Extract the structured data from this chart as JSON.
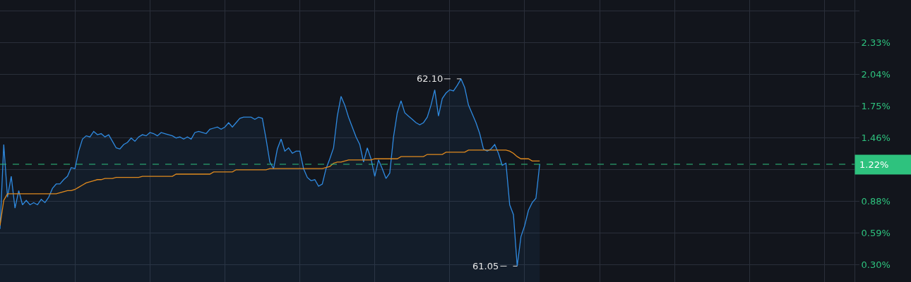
{
  "chart_data": {
    "type": "line",
    "categories": [
      null,
      null,
      null,
      null,
      null,
      null,
      null,
      null,
      null,
      null,
      null,
      null,
      null,
      null,
      null,
      null,
      null,
      null,
      null,
      null,
      null,
      null,
      null,
      null,
      null,
      null,
      null,
      null,
      null,
      null,
      null,
      null,
      null,
      null,
      null,
      null,
      null,
      null,
      null,
      null,
      null,
      null,
      null,
      null,
      null,
      null,
      null,
      null,
      null,
      null,
      null,
      null,
      null,
      null,
      null,
      null,
      null,
      null,
      null,
      null,
      null,
      null,
      null,
      null,
      null,
      null,
      null,
      null,
      null,
      null,
      null,
      null,
      null,
      null,
      null,
      null,
      null,
      null,
      null,
      null,
      null,
      null,
      null,
      null,
      null,
      null,
      null,
      null,
      null,
      null,
      null,
      null,
      null,
      null,
      null,
      null,
      null,
      null,
      null,
      null,
      null,
      null,
      null,
      null,
      null,
      null,
      null,
      null,
      null,
      null,
      null,
      null,
      null,
      null,
      null,
      null,
      null,
      null,
      null,
      null,
      null,
      null,
      null,
      null,
      null,
      null,
      null,
      null,
      null,
      null,
      null,
      null,
      null,
      null,
      null,
      null,
      null,
      null,
      null,
      null,
      null,
      null,
      null,
      null,
      null,
      null,
      null,
      null,
      null,
      null,
      null,
      null,
      null,
      null,
      null,
      null,
      null,
      null,
      null,
      null,
      null,
      null,
      null,
      null,
      null,
      null,
      null,
      null,
      null,
      null,
      null,
      null,
      null,
      null,
      null,
      null,
      null,
      null,
      null,
      null,
      null,
      null,
      null,
      null,
      null,
      null,
      null,
      null,
      null,
      null,
      null,
      null,
      null,
      null,
      null,
      null,
      null,
      null,
      null,
      null,
      null,
      null,
      null,
      null,
      null,
      null,
      null,
      null,
      null,
      null,
      null,
      null,
      null,
      null,
      null,
      null,
      null,
      null,
      null,
      null,
      null,
      null,
      null,
      null,
      null,
      null,
      null,
      null
    ],
    "series": [
      {
        "type": "area",
        "color": "#2f8ae0",
        "values": [
          0.63,
          1.4,
          0.92,
          1.11,
          0.82,
          0.98,
          0.85,
          0.89,
          0.85,
          0.87,
          0.85,
          0.9,
          0.87,
          0.92,
          1.0,
          1.04,
          1.04,
          1.08,
          1.11,
          1.19,
          1.18,
          1.34,
          1.45,
          1.48,
          1.47,
          1.52,
          1.49,
          1.5,
          1.47,
          1.49,
          1.43,
          1.37,
          1.36,
          1.4,
          1.42,
          1.46,
          1.43,
          1.47,
          1.49,
          1.48,
          1.51,
          1.5,
          1.48,
          1.51,
          1.5,
          1.49,
          1.48,
          1.46,
          1.47,
          1.45,
          1.47,
          1.45,
          1.51,
          1.52,
          1.51,
          1.5,
          1.54,
          1.55,
          1.56,
          1.54,
          1.56,
          1.6,
          1.56,
          1.6,
          1.64,
          1.65,
          1.65,
          1.65,
          1.63,
          1.65,
          1.64,
          1.45,
          1.24,
          1.18,
          1.36,
          1.45,
          1.34,
          1.37,
          1.32,
          1.34,
          1.34,
          1.18,
          1.1,
          1.07,
          1.08,
          1.02,
          1.04,
          1.18,
          1.27,
          1.37,
          1.66,
          1.84,
          1.76,
          1.65,
          1.56,
          1.47,
          1.4,
          1.24,
          1.37,
          1.27,
          1.11,
          1.26,
          1.18,
          1.09,
          1.14,
          1.47,
          1.69,
          1.8,
          1.69,
          1.66,
          1.63,
          1.6,
          1.58,
          1.6,
          1.65,
          1.76,
          1.9,
          1.66,
          1.82,
          1.87,
          1.9,
          1.89,
          1.94,
          2.0,
          1.92,
          1.76,
          1.68,
          1.6,
          1.5,
          1.36,
          1.34,
          1.36,
          1.4,
          1.32,
          1.21,
          1.23,
          0.85,
          0.76,
          0.29,
          0.56,
          0.66,
          0.8,
          0.87,
          0.91,
          1.22,
          null,
          null,
          null,
          null,
          null,
          null,
          null,
          null,
          null,
          null,
          null,
          null,
          null,
          null,
          null,
          null,
          null,
          null,
          null,
          null,
          null,
          null,
          null,
          null,
          null,
          null,
          null,
          null,
          null,
          null,
          null,
          null,
          null,
          null,
          null,
          null,
          null,
          null,
          null,
          null,
          null,
          null,
          null,
          null,
          null,
          null,
          null,
          null,
          null,
          null,
          null,
          null,
          null,
          null,
          null,
          null,
          null,
          null,
          null,
          null,
          null,
          null,
          null,
          null,
          null,
          null,
          null,
          null,
          null,
          null,
          null,
          null,
          null,
          null,
          null,
          null,
          null,
          null,
          null,
          null,
          null,
          null,
          null
        ]
      },
      {
        "color": "#e08a1e",
        "values": [
          0.66,
          0.89,
          0.95,
          0.95,
          0.95,
          0.95,
          0.95,
          0.95,
          0.95,
          0.95,
          0.95,
          0.95,
          0.95,
          0.95,
          0.95,
          0.95,
          0.96,
          0.97,
          0.98,
          0.98,
          0.99,
          1.01,
          1.03,
          1.05,
          1.06,
          1.07,
          1.08,
          1.08,
          1.09,
          1.09,
          1.09,
          1.1,
          1.1,
          1.1,
          1.1,
          1.1,
          1.1,
          1.1,
          1.11,
          1.11,
          1.11,
          1.11,
          1.11,
          1.11,
          1.11,
          1.11,
          1.11,
          1.13,
          1.13,
          1.13,
          1.13,
          1.13,
          1.13,
          1.13,
          1.13,
          1.13,
          1.13,
          1.15,
          1.15,
          1.15,
          1.15,
          1.15,
          1.15,
          1.17,
          1.17,
          1.17,
          1.17,
          1.17,
          1.17,
          1.17,
          1.17,
          1.17,
          1.18,
          1.18,
          1.18,
          1.18,
          1.18,
          1.18,
          1.18,
          1.18,
          1.18,
          1.18,
          1.18,
          1.18,
          1.18,
          1.18,
          1.18,
          1.19,
          1.2,
          1.23,
          1.24,
          1.24,
          1.25,
          1.26,
          1.26,
          1.26,
          1.26,
          1.26,
          1.26,
          1.26,
          1.27,
          1.27,
          1.27,
          1.27,
          1.27,
          1.27,
          1.27,
          1.29,
          1.29,
          1.29,
          1.29,
          1.29,
          1.29,
          1.29,
          1.31,
          1.31,
          1.31,
          1.31,
          1.31,
          1.33,
          1.33,
          1.33,
          1.33,
          1.33,
          1.33,
          1.35,
          1.35,
          1.35,
          1.35,
          1.35,
          1.35,
          1.35,
          1.35,
          1.35,
          1.35,
          1.35,
          1.34,
          1.32,
          1.29,
          1.27,
          1.27,
          1.27,
          1.25,
          1.25,
          1.25,
          null,
          null,
          null,
          null,
          null,
          null,
          null,
          null,
          null,
          null,
          null,
          null,
          null,
          null,
          null,
          null,
          null,
          null,
          null,
          null,
          null,
          null,
          null,
          null,
          null,
          null,
          null,
          null,
          null,
          null,
          null,
          null,
          null,
          null,
          null,
          null,
          null,
          null,
          null,
          null,
          null,
          null,
          null,
          null,
          null,
          null,
          null,
          null,
          null,
          null,
          null,
          null,
          null,
          null,
          null,
          null,
          null,
          null,
          null,
          null,
          null,
          null,
          null,
          null,
          null,
          null,
          null,
          null,
          null,
          null,
          null,
          null,
          null,
          null,
          null,
          null,
          null,
          null,
          null,
          null,
          null,
          null,
          null
        ]
      }
    ],
    "ylim": [
      0.145,
      2.72
    ],
    "yticks": [
      {
        "value": 0.3,
        "label": "0.30%"
      },
      {
        "value": 0.59,
        "label": "0.59%"
      },
      {
        "value": 0.88,
        "label": "0.88%"
      },
      {
        "value": 1.17,
        "label": null
      },
      {
        "value": 1.46,
        "label": "1.46%"
      },
      {
        "value": 1.75,
        "label": "1.75%"
      },
      {
        "value": 2.04,
        "label": "2.04%"
      },
      {
        "value": 2.33,
        "label": "2.33%"
      },
      {
        "value": 2.62,
        "label": null
      }
    ],
    "grid": true,
    "ref_lines": [
      {
        "axis": "y",
        "value": 1.22,
        "label": "1.22%",
        "color": "#2ec27e",
        "line_style": "dashed"
      }
    ],
    "annotations": [
      "62.10",
      "61.05"
    ],
    "tick_labels": "y"
  }
}
